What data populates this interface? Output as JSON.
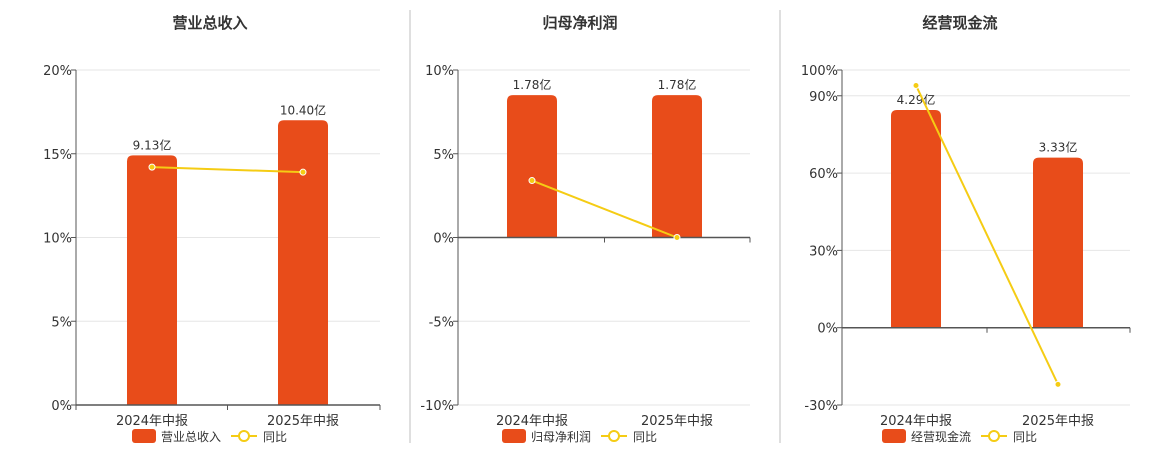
{
  "colors": {
    "bar": "#E84C1A",
    "line": "#F5CC14",
    "grid": "#E6E6E6",
    "axis": "#555555",
    "divider": "#BFBFBF",
    "text": "#333333"
  },
  "chart_data": [
    {
      "type": "bar",
      "title": "营业总收入",
      "categories": [
        "2024年中报",
        "2025年中报"
      ],
      "y_ticks": [
        "20%",
        "15%",
        "10%",
        "5%",
        "0%"
      ],
      "ylim": [
        0,
        20
      ],
      "grid": true,
      "legend_position": "bottom",
      "series": [
        {
          "name": "营业总收入",
          "type": "bar",
          "values": [
            14.9,
            17.0
          ],
          "labels": [
            "9.13亿",
            "10.40亿"
          ]
        },
        {
          "name": "同比",
          "type": "line",
          "values": [
            14.2,
            13.9
          ]
        }
      ]
    },
    {
      "type": "bar",
      "title": "归母净利润",
      "categories": [
        "2024年中报",
        "2025年中报"
      ],
      "y_ticks": [
        "10%",
        "5%",
        "0%",
        "-5%",
        "-10%"
      ],
      "ylim": [
        -10,
        10
      ],
      "grid": true,
      "legend_position": "bottom",
      "series": [
        {
          "name": "归母净利润",
          "type": "bar",
          "values": [
            8.5,
            8.5
          ],
          "labels": [
            "1.78亿",
            "1.78亿"
          ]
        },
        {
          "name": "同比",
          "type": "line",
          "values": [
            3.4,
            0.0
          ]
        }
      ]
    },
    {
      "type": "bar",
      "title": "经营现金流",
      "categories": [
        "2024年中报",
        "2025年中报"
      ],
      "y_ticks": [
        "100%",
        "90%",
        "60%",
        "30%",
        "0%",
        "-30%"
      ],
      "ylim": [
        -30,
        100
      ],
      "grid": true,
      "legend_position": "bottom",
      "series": [
        {
          "name": "经营现金流",
          "type": "bar",
          "values": [
            84.5,
            66.0
          ],
          "labels": [
            "4.29亿",
            "3.33亿"
          ]
        },
        {
          "name": "同比",
          "type": "line",
          "values": [
            94.0,
            -22.0
          ]
        }
      ]
    }
  ]
}
